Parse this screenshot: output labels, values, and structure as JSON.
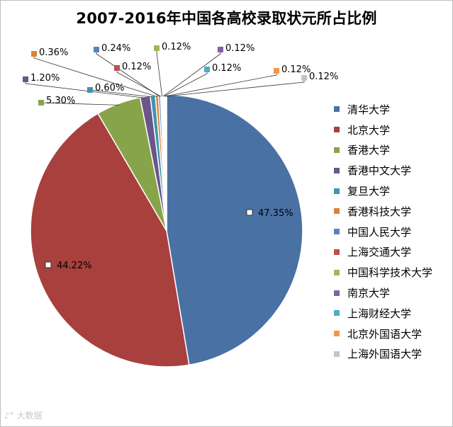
{
  "chart_data": {
    "type": "pie",
    "title": "2007-2016年中国各高校录取状元所占比例",
    "categories": [
      "清华大学",
      "北京大学",
      "香港大学",
      "香港中文大学",
      "复旦大学",
      "香港科技大学",
      "中国人民大学",
      "上海交通大学",
      "中国科学技术大学",
      "南京大学",
      "上海财经大学",
      "北京外国语大学",
      "上海外国语大学"
    ],
    "values": [
      47.35,
      44.22,
      5.3,
      1.2,
      0.6,
      0.36,
      0.24,
      0.12,
      0.12,
      0.12,
      0.12,
      0.12,
      0.12
    ],
    "labels": [
      "47.35%",
      "44.22%",
      "5.30%",
      "1.20%",
      "0.60%",
      "0.36%",
      "0.24%",
      "0.12%",
      "0.12%",
      "0.12%",
      "0.12%",
      "0.12%",
      "0.12%"
    ],
    "colors": [
      "#4a71a3",
      "#a8403e",
      "#88a44a",
      "#6b558a",
      "#3d96ae",
      "#d9823b",
      "#5b82b8",
      "#c0504d",
      "#9bbb59",
      "#8064a2",
      "#4bacc6",
      "#f79646",
      "#c0c4cc"
    ],
    "legend_position": "right"
  },
  "watermark": "大数据"
}
